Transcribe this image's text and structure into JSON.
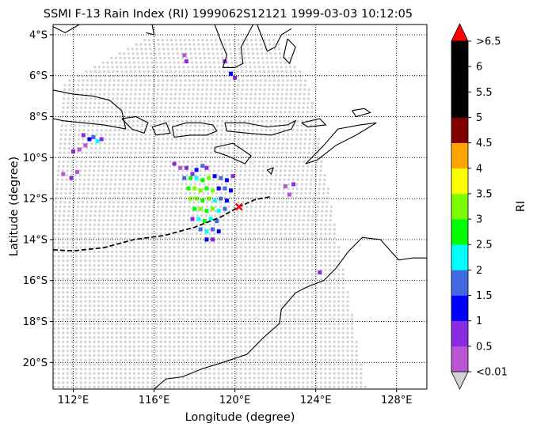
{
  "title": "SSMI F-13 Rain Index (RI) 1999062S12121 1999-03-03 10:12:05",
  "xlabel": "Longitude (degree)",
  "ylabel": "Latitude (degree)",
  "colorbar": {
    "label": "RI",
    "tick_labels": [
      "<0.01",
      "0.5",
      "1",
      "1.5",
      "2",
      "2.5",
      "3",
      "3.5",
      "4",
      "4.5",
      "5",
      "5.5",
      "6",
      ">6.5"
    ],
    "colors": [
      "#ba55d3",
      "#8a2be2",
      "#0000ff",
      "#4169e1",
      "#00ffff",
      "#00ff00",
      "#7cfc00",
      "#ffff00",
      "#ffa500",
      "#800000",
      "#000000",
      "#000000",
      "#000000"
    ],
    "under_color": "#d3d3d3",
    "over_color": "#ff0000"
  },
  "chart_data": {
    "type": "map",
    "xlim": [
      111.0,
      129.5
    ],
    "ylim": [
      -21.3,
      -3.5
    ],
    "x_ticks": [
      112,
      116,
      120,
      124,
      128
    ],
    "x_tick_labels": [
      "112°E",
      "116°E",
      "120°E",
      "124°E",
      "128°E"
    ],
    "y_ticks": [
      -4,
      -6,
      -8,
      -10,
      -12,
      -14,
      -16,
      -18,
      -20
    ],
    "y_tick_labels": [
      "4°S",
      "6°S",
      "8°S",
      "10°S",
      "12°S",
      "14°S",
      "16°S",
      "18°S",
      "20°S"
    ],
    "grid": true,
    "swath_color": "#d3d3d3",
    "track": [
      [
        111.0,
        -14.5
      ],
      [
        112.0,
        -14.55
      ],
      [
        113.5,
        -14.4
      ],
      [
        115.0,
        -14.0
      ],
      [
        116.5,
        -13.8
      ],
      [
        118.0,
        -13.4
      ],
      [
        119.3,
        -12.9
      ],
      [
        120.2,
        -12.4
      ],
      [
        121.0,
        -12.05
      ],
      [
        121.8,
        -11.9
      ]
    ],
    "storm_position": [
      120.2,
      -12.4
    ],
    "rain_cells": [
      [
        117.0,
        -10.3,
        1
      ],
      [
        117.3,
        -10.5,
        0
      ],
      [
        117.6,
        -10.5,
        1
      ],
      [
        117.9,
        -10.8,
        1
      ],
      [
        118.1,
        -10.6,
        2
      ],
      [
        118.4,
        -10.4,
        3
      ],
      [
        118.6,
        -10.5,
        1
      ],
      [
        117.5,
        -11.0,
        3
      ],
      [
        117.8,
        -11.0,
        5
      ],
      [
        118.1,
        -11.0,
        4
      ],
      [
        118.4,
        -11.1,
        5
      ],
      [
        118.7,
        -11.0,
        6
      ],
      [
        119.0,
        -10.9,
        2
      ],
      [
        119.3,
        -11.0,
        3
      ],
      [
        119.6,
        -11.1,
        2
      ],
      [
        119.9,
        -10.9,
        1
      ],
      [
        117.7,
        -11.5,
        5
      ],
      [
        118.0,
        -11.5,
        6
      ],
      [
        118.3,
        -11.6,
        6
      ],
      [
        118.6,
        -11.5,
        5
      ],
      [
        118.9,
        -11.6,
        6
      ],
      [
        119.2,
        -11.5,
        2
      ],
      [
        119.5,
        -11.5,
        3
      ],
      [
        119.8,
        -11.6,
        2
      ],
      [
        117.8,
        -12.0,
        6
      ],
      [
        118.1,
        -12.0,
        6
      ],
      [
        118.4,
        -12.1,
        5
      ],
      [
        118.7,
        -12.0,
        6
      ],
      [
        119.0,
        -12.1,
        4
      ],
      [
        119.3,
        -12.0,
        3
      ],
      [
        119.6,
        -12.1,
        2
      ],
      [
        118.0,
        -12.5,
        5
      ],
      [
        118.3,
        -12.5,
        6
      ],
      [
        118.6,
        -12.6,
        5
      ],
      [
        118.9,
        -12.5,
        6
      ],
      [
        119.2,
        -12.6,
        4
      ],
      [
        119.5,
        -12.5,
        3
      ],
      [
        117.9,
        -13.0,
        1
      ],
      [
        118.2,
        -13.0,
        4
      ],
      [
        118.5,
        -13.1,
        5
      ],
      [
        118.8,
        -13.0,
        4
      ],
      [
        119.1,
        -13.1,
        3
      ],
      [
        118.3,
        -13.5,
        3
      ],
      [
        118.6,
        -13.6,
        4
      ],
      [
        118.9,
        -13.5,
        3
      ],
      [
        119.2,
        -13.6,
        2
      ],
      [
        118.6,
        -14.0,
        2
      ],
      [
        118.9,
        -14.0,
        1
      ],
      [
        112.5,
        -8.9,
        1
      ],
      [
        112.8,
        -9.1,
        2
      ],
      [
        113.0,
        -9.0,
        3
      ],
      [
        113.2,
        -9.2,
        4
      ],
      [
        113.4,
        -9.1,
        1
      ],
      [
        112.6,
        -9.4,
        0
      ],
      [
        112.3,
        -9.6,
        0
      ],
      [
        112.0,
        -9.7,
        1
      ],
      [
        111.5,
        -10.8,
        0
      ],
      [
        111.9,
        -11.0,
        1
      ],
      [
        112.2,
        -10.7,
        0
      ],
      [
        119.5,
        -5.3,
        1
      ],
      [
        119.8,
        -5.9,
        2
      ],
      [
        120.0,
        -6.1,
        1
      ],
      [
        117.5,
        -5.0,
        0
      ],
      [
        117.6,
        -5.3,
        1
      ],
      [
        122.5,
        -11.4,
        0
      ],
      [
        122.9,
        -11.3,
        1
      ],
      [
        122.7,
        -11.8,
        0
      ],
      [
        124.2,
        -15.6,
        1
      ]
    ]
  }
}
